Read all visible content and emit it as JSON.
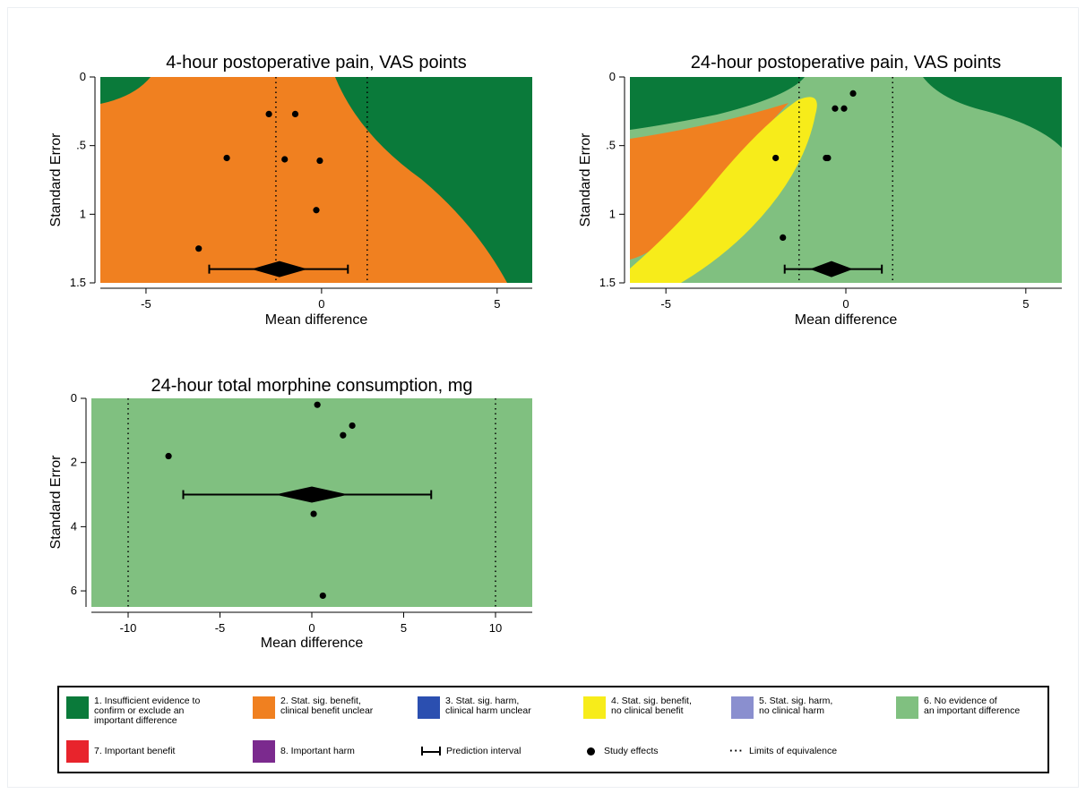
{
  "colors": {
    "cat1": "#0a7a3a",
    "cat2": "#f08020",
    "cat3": "#2b4fb0",
    "cat4": "#f7ec1a",
    "cat5": "#8a8fcf",
    "cat6": "#80c080",
    "cat7": "#e8242c",
    "cat8": "#7b2a8e"
  },
  "chart_data": [
    {
      "type": "scatter",
      "title": "4-hour postoperative pain, VAS points",
      "xlabel": "Mean difference",
      "ylabel": "Standard Error",
      "xlim": [
        -6.3,
        6
      ],
      "ylim": [
        0,
        1.5
      ],
      "y_inverted": true,
      "xticks": [
        -5,
        0,
        5
      ],
      "xtick_labels": [
        "-5",
        "0",
        "5"
      ],
      "yticks": [
        0,
        0.5,
        1,
        1.5
      ],
      "ytick_labels": [
        "0",
        ".5",
        "1",
        "1.5"
      ],
      "equivalence_limits": [
        -1.3,
        1.3
      ],
      "points": [
        {
          "x": -1.5,
          "y": 0.27
        },
        {
          "x": -0.75,
          "y": 0.27
        },
        {
          "x": -2.7,
          "y": 0.59
        },
        {
          "x": -1.05,
          "y": 0.6
        },
        {
          "x": -0.05,
          "y": 0.61
        },
        {
          "x": -0.15,
          "y": 0.97
        },
        {
          "x": -3.5,
          "y": 1.25
        }
      ],
      "pooled": {
        "estimate": -1.2,
        "ci": [
          -2.0,
          -0.4
        ],
        "y": 1.4
      },
      "prediction_interval": [
        -3.2,
        0.75
      ],
      "background": "orange-green regions"
    },
    {
      "type": "scatter",
      "title": "24-hour postoperative pain, VAS points",
      "xlabel": "Mean difference",
      "ylabel": "Standard Error",
      "xlim": [
        -6,
        6
      ],
      "ylim": [
        0,
        1.5
      ],
      "y_inverted": true,
      "xticks": [
        -5,
        0,
        5
      ],
      "xtick_labels": [
        "-5",
        "0",
        "5"
      ],
      "yticks": [
        0,
        0.5,
        1,
        1.5
      ],
      "ytick_labels": [
        "0",
        ".5",
        "1",
        "1.5"
      ],
      "equivalence_limits": [
        -1.3,
        1.3
      ],
      "points": [
        {
          "x": 0.2,
          "y": 0.12
        },
        {
          "x": -0.3,
          "y": 0.23
        },
        {
          "x": -0.05,
          "y": 0.23
        },
        {
          "x": -0.55,
          "y": 0.59
        },
        {
          "x": -0.5,
          "y": 0.59
        },
        {
          "x": -1.95,
          "y": 0.59
        },
        {
          "x": -1.75,
          "y": 1.17
        }
      ],
      "pooled": {
        "estimate": -0.4,
        "ci": [
          -1.0,
          0.2
        ],
        "y": 1.4
      },
      "prediction_interval": [
        -1.7,
        1.0
      ],
      "background": "green regions with orange and yellow band"
    },
    {
      "type": "scatter",
      "title": "24-hour total morphine consumption, mg",
      "xlabel": "Mean difference",
      "ylabel": "Standard Error",
      "xlim": [
        -12,
        12
      ],
      "ylim": [
        0,
        6.5
      ],
      "y_inverted": true,
      "xticks": [
        -10,
        -5,
        0,
        5,
        10
      ],
      "xtick_labels": [
        "-10",
        "-5",
        "0",
        "5",
        "10"
      ],
      "yticks": [
        0,
        2,
        4,
        6
      ],
      "ytick_labels": [
        "0",
        "2",
        "4",
        "6"
      ],
      "equivalence_limits": [
        -10,
        10
      ],
      "points": [
        {
          "x": 0.3,
          "y": 0.2
        },
        {
          "x": 2.2,
          "y": 0.85
        },
        {
          "x": 1.7,
          "y": 1.15
        },
        {
          "x": -7.8,
          "y": 1.8
        },
        {
          "x": 0.1,
          "y": 3.6
        },
        {
          "x": 0.6,
          "y": 6.15
        }
      ],
      "pooled": {
        "estimate": 0,
        "ci": [
          -2.0,
          2.0
        ],
        "y": 3.0
      },
      "prediction_interval": [
        -7.0,
        6.5
      ],
      "background": "green"
    }
  ],
  "legend": {
    "items": [
      {
        "label": "1. Insufficient evidence to\nconfirm or exclude an\nimportant difference",
        "color": "#0a7a3a"
      },
      {
        "label": "2. Stat. sig. benefit,\nclinical benefit unclear",
        "color": "#f08020"
      },
      {
        "label": "3. Stat. sig. harm,\nclinical harm unclear",
        "color": "#2b4fb0"
      },
      {
        "label": "4. Stat. sig. benefit,\nno clinical benefit",
        "color": "#f7ec1a"
      },
      {
        "label": "5. Stat. sig. harm,\nno clinical harm",
        "color": "#8a8fcf"
      },
      {
        "label": "6. No evidence of\nan important difference",
        "color": "#80c080"
      },
      {
        "label": "7. Important benefit",
        "color": "#e8242c"
      },
      {
        "label": "8. Important harm",
        "color": "#7b2a8e"
      },
      {
        "label": "Prediction interval",
        "symbol": "interval-bar"
      },
      {
        "label": "Study effects",
        "symbol": "dot"
      },
      {
        "label": "Limits of equivalence",
        "symbol": "dotted-line"
      }
    ]
  }
}
